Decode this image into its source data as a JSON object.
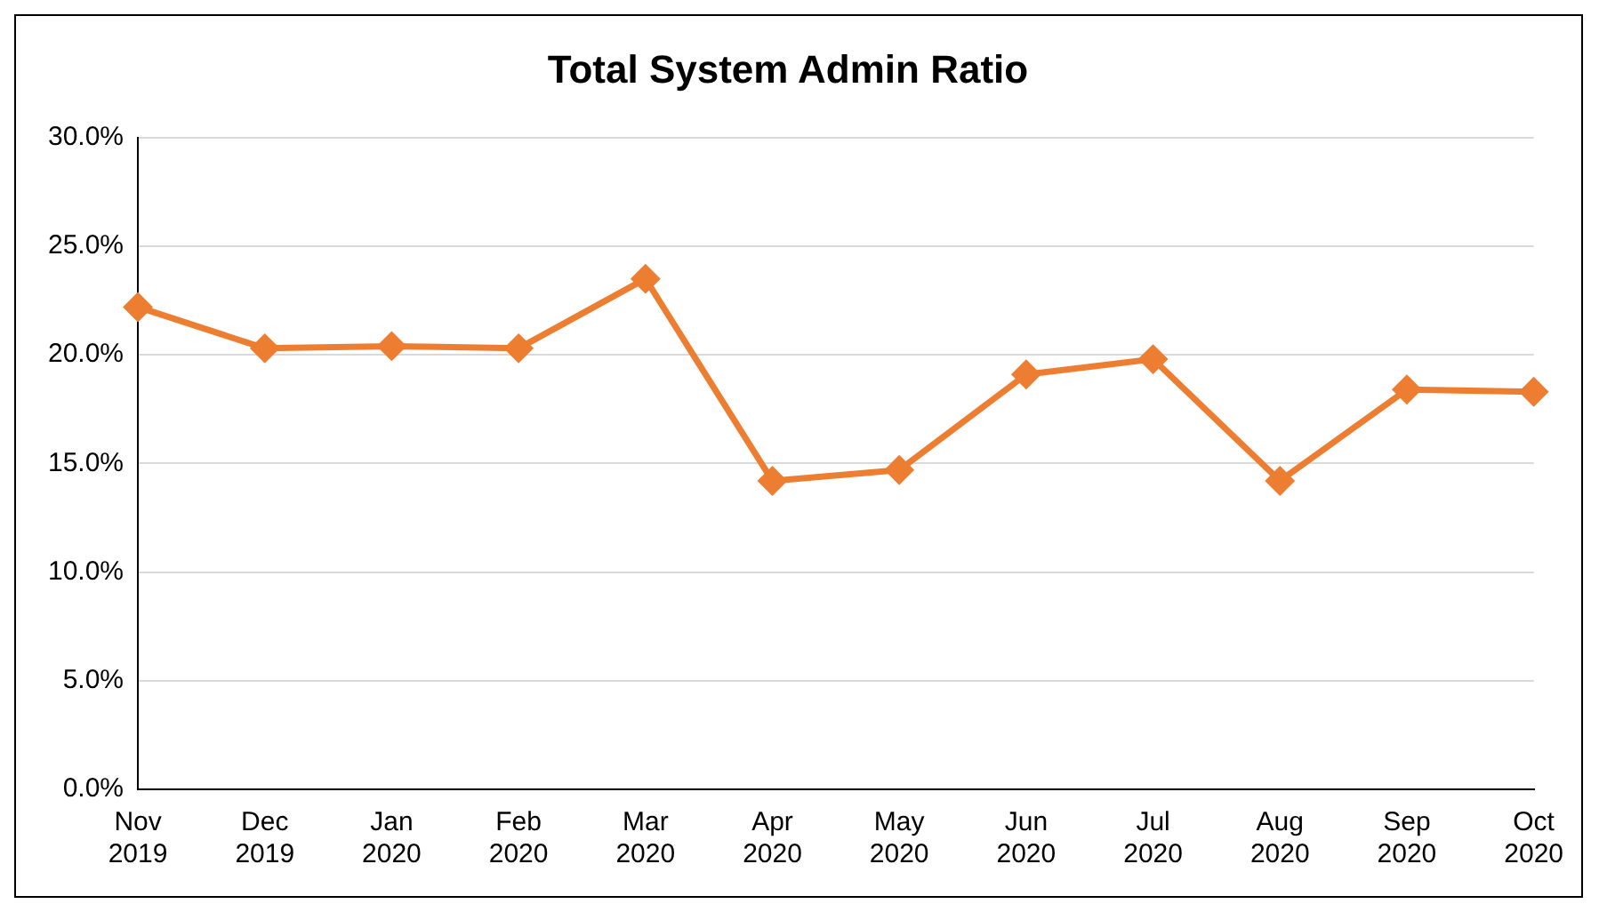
{
  "chart_data": {
    "type": "line",
    "title": "Total System Admin Ratio",
    "categories": [
      "Nov 2019",
      "Dec 2019",
      "Jan 2020",
      "Feb 2020",
      "Mar 2020",
      "Apr 2020",
      "May 2020",
      "Jun 2020",
      "Jul 2020",
      "Aug 2020",
      "Sep 2020",
      "Oct 2020"
    ],
    "series": [
      {
        "color": "#ed7d31",
        "values": [
          22.2,
          20.3,
          20.4,
          20.3,
          23.5,
          14.2,
          14.7,
          19.1,
          19.8,
          14.2,
          18.4,
          18.3
        ]
      }
    ],
    "ylim": [
      0,
      30
    ],
    "yticks": [
      {
        "value": 0,
        "label": "0.0%"
      },
      {
        "value": 5,
        "label": "5.0%"
      },
      {
        "value": 10,
        "label": "10.0%"
      },
      {
        "value": 15,
        "label": "15.0%"
      },
      {
        "value": 20,
        "label": "20.0%"
      },
      {
        "value": 25,
        "label": "25.0%"
      },
      {
        "value": 30,
        "label": "30.0%"
      }
    ],
    "grid": "y",
    "legend": false,
    "marker": "diamond",
    "line_style": "solid"
  }
}
